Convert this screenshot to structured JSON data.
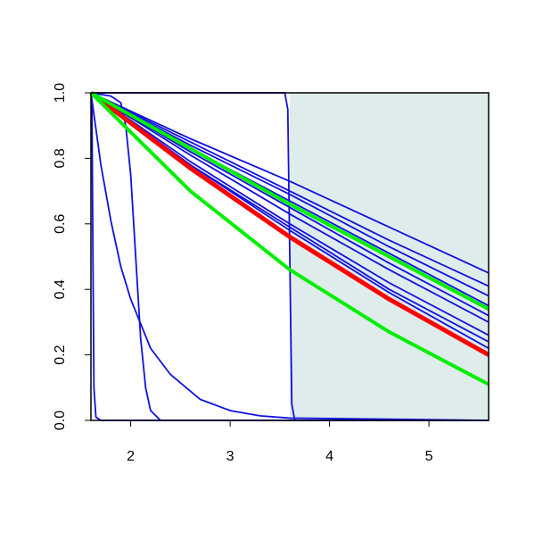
{
  "chart_data": {
    "type": "line",
    "xlim": [
      1.6,
      5.6
    ],
    "ylim": [
      0,
      1
    ],
    "xticks": [
      2,
      3,
      4,
      5
    ],
    "yticks": [
      {
        "value": 0,
        "label": "0.0"
      },
      0.2,
      0.4,
      0.6,
      0.8,
      {
        "value": 1,
        "label": "1.0"
      }
    ],
    "shaded_region": {
      "x": [
        3.6,
        5.6
      ],
      "color": "#deeceb"
    },
    "series": [
      {
        "color": "#1010e0",
        "line_width": 1.8,
        "x": [
          1.6,
          2.6,
          3.6,
          4.6,
          5.6
        ],
        "values": [
          1,
          0.86,
          0.73,
          0.59,
          0.45
        ]
      },
      {
        "color": "#1010e0",
        "line_width": 1.8,
        "x": [
          1.6,
          2.6,
          3.6,
          4.6,
          5.6
        ],
        "values": [
          1,
          0.85,
          0.7,
          0.55,
          0.41
        ]
      },
      {
        "color": "#1010e0",
        "line_width": 1.8,
        "x": [
          1.6,
          2.6,
          3.6,
          4.6,
          5.6
        ],
        "values": [
          1,
          0.84,
          0.69,
          0.53,
          0.38
        ]
      },
      {
        "color": "#1010e0",
        "line_width": 1.8,
        "x": [
          1.6,
          2.6,
          3.6,
          4.6,
          5.6
        ],
        "values": [
          1,
          0.83,
          0.67,
          0.51,
          0.35
        ]
      },
      {
        "color": "#1010e0",
        "line_width": 1.8,
        "x": [
          1.6,
          2.6,
          3.6,
          4.6,
          5.6
        ],
        "values": [
          1,
          0.82,
          0.65,
          0.48,
          0.32
        ]
      },
      {
        "color": "#1010e0",
        "line_width": 1.8,
        "x": [
          1.6,
          2.6,
          3.6,
          4.6,
          5.6
        ],
        "values": [
          1,
          0.81,
          0.63,
          0.46,
          0.3
        ]
      },
      {
        "color": "#1010e0",
        "line_width": 1.8,
        "x": [
          1.6,
          2.6,
          3.6,
          4.6,
          5.6
        ],
        "values": [
          1,
          0.79,
          0.6,
          0.42,
          0.26
        ]
      },
      {
        "color": "#1010e0",
        "line_width": 1.8,
        "x": [
          1.6,
          2.6,
          3.6,
          4.6,
          5.6
        ],
        "values": [
          1,
          0.78,
          0.59,
          0.4,
          0.24
        ]
      },
      {
        "color": "#1010e0",
        "line_width": 1.8,
        "x": [
          1.6,
          2.6,
          3.6,
          4.6,
          5.6
        ],
        "values": [
          1,
          0.78,
          0.58,
          0.39,
          0.22
        ]
      },
      {
        "color": "#1010e0",
        "line_width": 1.8,
        "x": [
          1.6,
          1.61,
          1.62,
          1.63,
          1.65,
          1.7,
          5.6
        ],
        "values": [
          1,
          0.95,
          0.5,
          0.1,
          0.01,
          0,
          0
        ]
      },
      {
        "color": "#1010e0",
        "line_width": 1.8,
        "x": [
          1.6,
          1.8,
          1.9,
          1.95,
          2.0,
          2.05,
          2.1,
          2.15,
          2.2,
          2.3,
          5.6
        ],
        "values": [
          1,
          0.99,
          0.97,
          0.9,
          0.75,
          0.5,
          0.25,
          0.1,
          0.03,
          0,
          0
        ]
      },
      {
        "color": "#1010e0",
        "line_width": 1.8,
        "x": [
          1.6,
          1.7,
          1.8,
          1.9,
          2.0,
          2.2,
          2.4,
          2.7,
          3.0,
          3.3,
          3.6,
          5.6
        ],
        "values": [
          1,
          0.78,
          0.61,
          0.47,
          0.37,
          0.22,
          0.14,
          0.064,
          0.03,
          0.014,
          0.007,
          0
        ]
      },
      {
        "color": "#1010e0",
        "line_width": 1.8,
        "x": [
          1.6,
          3.55,
          3.58,
          3.6,
          3.62,
          3.65,
          5.6
        ],
        "values": [
          1,
          1,
          0.95,
          0.5,
          0.05,
          0,
          0
        ]
      },
      {
        "color": "#ff0000",
        "line_width": 5,
        "x": [
          1.6,
          2.6,
          3.6,
          4.6,
          5.6
        ],
        "values": [
          1,
          0.77,
          0.56,
          0.37,
          0.2
        ]
      },
      {
        "color": "#00ee00",
        "line_width": 4,
        "x": [
          1.6,
          2.6,
          3.6,
          4.6,
          5.6
        ],
        "values": [
          1,
          0.83,
          0.66,
          0.5,
          0.34
        ]
      },
      {
        "color": "#00ee00",
        "line_width": 4,
        "x": [
          1.6,
          2.6,
          3.6,
          4.6,
          5.6
        ],
        "values": [
          1,
          0.7,
          0.46,
          0.27,
          0.11
        ]
      }
    ]
  }
}
